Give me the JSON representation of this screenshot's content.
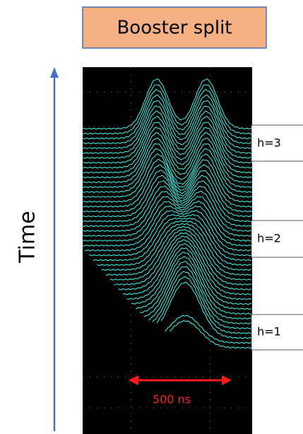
{
  "title": "Booster split",
  "axis_label": "Time",
  "labels": [
    "h=3",
    "h=2",
    "h=1"
  ],
  "scale_label": "500 ns"
}
